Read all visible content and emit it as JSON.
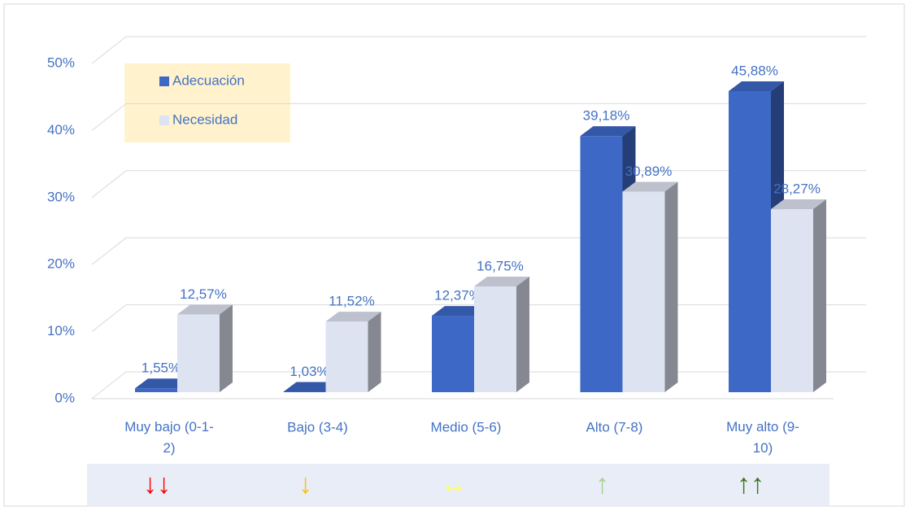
{
  "chart_data": {
    "type": "bar3d",
    "categories": [
      "Muy bajo (0-1-2)",
      "Bajo (3-4)",
      "Medio (5-6)",
      "Alto (7-8)",
      "Muy alto (9-10)"
    ],
    "series": [
      {
        "name": "Adecuación",
        "color": "#3d68c6",
        "values": [
          1.55,
          1.03,
          12.37,
          39.18,
          45.88
        ],
        "value_labels": [
          "1,55%",
          "1,03%",
          "12,37%",
          "39,18%",
          "45,88%"
        ]
      },
      {
        "name": "Necesidad",
        "color": "#dde3f1",
        "values": [
          12.57,
          11.52,
          16.75,
          30.89,
          28.27
        ],
        "value_labels": [
          "12,57%",
          "11,52%",
          "16,75%",
          "30,89%",
          "28,27%"
        ]
      }
    ],
    "ylim": [
      0,
      50
    ],
    "yticks": [
      {
        "value": 0,
        "label": "0%"
      },
      {
        "value": 10,
        "label": "10%"
      },
      {
        "value": 20,
        "label": "20%"
      },
      {
        "value": 30,
        "label": "30%"
      },
      {
        "value": 40,
        "label": "40%"
      },
      {
        "value": 50,
        "label": "50%"
      }
    ],
    "grid": true,
    "legend": "top-left",
    "indicators": [
      {
        "label": "↓↓",
        "color": "#ff0000"
      },
      {
        "label": "↓",
        "color": "#ffc000"
      },
      {
        "label": "↔",
        "color": "#ffff66"
      },
      {
        "label": "↑",
        "color": "#a9d18e"
      },
      {
        "label": "↑↑",
        "color": "#38761d"
      }
    ]
  }
}
